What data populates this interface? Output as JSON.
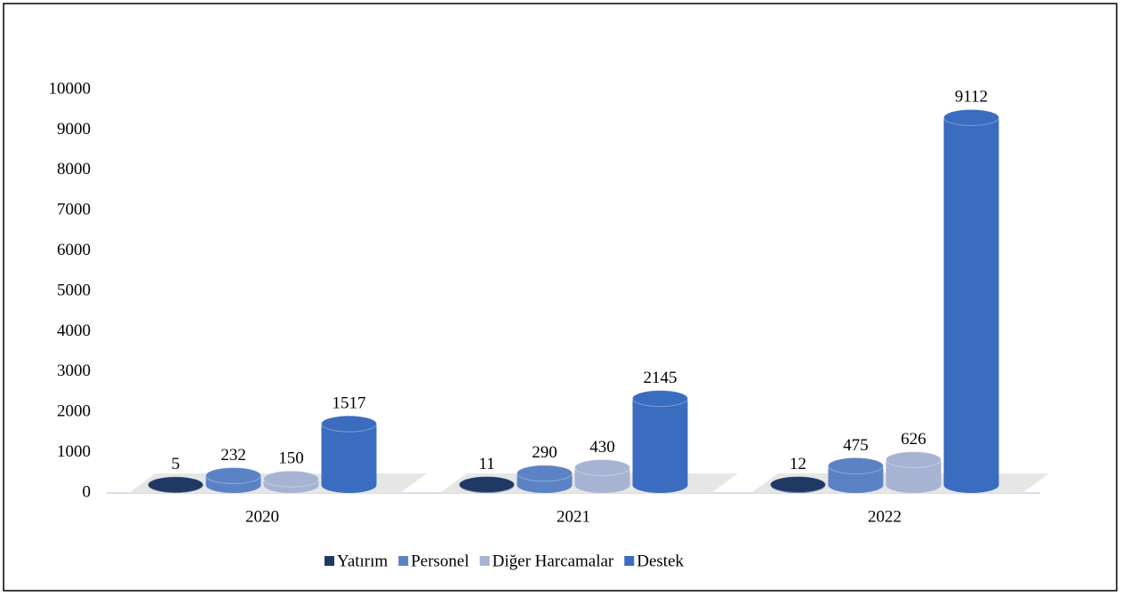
{
  "chart_data": {
    "type": "bar",
    "categories": [
      "2020",
      "2021",
      "2022"
    ],
    "series": [
      {
        "name": "Yatırım",
        "color": "#1f3864",
        "values": [
          5,
          11,
          12
        ]
      },
      {
        "name": "Personel",
        "color": "#5b82c4",
        "values": [
          232,
          290,
          475
        ]
      },
      {
        "name": "Diğer Harcamalar",
        "color": "#a6b3d3",
        "values": [
          150,
          430,
          626
        ]
      },
      {
        "name": "Destek",
        "color": "#3a6cc0",
        "values": [
          1517,
          2145,
          9112
        ]
      }
    ],
    "ylim": [
      0,
      10000
    ],
    "yticks": [
      0,
      1000,
      2000,
      3000,
      4000,
      5000,
      6000,
      7000,
      8000,
      9000,
      10000
    ],
    "grid": false,
    "legend": "bottom"
  }
}
